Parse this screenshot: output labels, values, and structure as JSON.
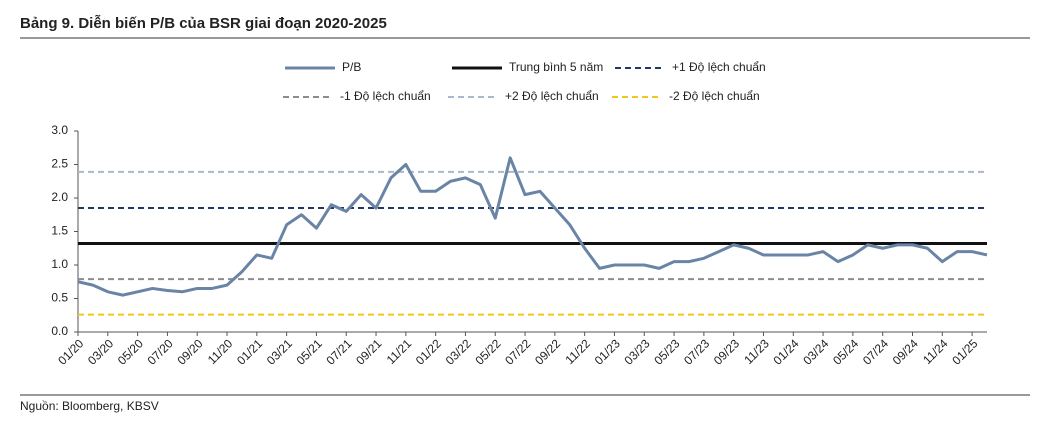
{
  "chart_data": {
    "type": "line",
    "title": "Bảng 9. Diễn biến P/B của BSR giai đoạn 2020-2025",
    "source": "Nguồn: Bloomberg, KBSV",
    "categories": [
      "01/20",
      null,
      "03/20",
      null,
      "05/20",
      null,
      "07/20",
      null,
      "09/20",
      null,
      "11/20",
      null,
      "01/21",
      null,
      "03/21",
      null,
      "05/21",
      null,
      "07/21",
      null,
      "09/21",
      null,
      "11/21",
      null,
      "01/22",
      null,
      "03/22",
      null,
      "05/22",
      null,
      "07/22",
      null,
      "09/22",
      null,
      "11/22",
      null,
      "01/23",
      null,
      "03/23",
      null,
      "05/23",
      null,
      "07/23",
      null,
      "09/23",
      null,
      "11/23",
      null,
      "01/24",
      null,
      "03/24",
      null,
      "05/24",
      null,
      "07/24",
      null,
      "09/24",
      null,
      "11/24",
      null,
      "01/25",
      null
    ],
    "series": [
      {
        "name": "P/B",
        "color": "#6a84a6",
        "values": [
          0.75,
          0.7,
          0.6,
          0.55,
          0.6,
          0.65,
          0.62,
          0.6,
          0.65,
          0.65,
          0.7,
          0.9,
          1.15,
          1.1,
          1.6,
          1.75,
          1.55,
          1.9,
          1.8,
          2.05,
          1.85,
          2.3,
          2.5,
          2.1,
          2.1,
          2.25,
          2.3,
          2.2,
          1.7,
          2.6,
          2.05,
          2.1,
          1.85,
          1.6,
          1.25,
          0.95,
          1.0,
          1.0,
          1.0,
          0.95,
          1.05,
          1.05,
          1.1,
          1.2,
          1.3,
          1.25,
          1.15,
          1.15,
          1.15,
          1.15,
          1.2,
          1.05,
          1.15,
          1.3,
          1.25,
          1.3,
          1.3,
          1.25,
          1.05,
          1.2,
          1.2,
          1.15
        ]
      }
    ],
    "reference_lines": [
      {
        "name": "Trung bình 5 năm",
        "value": 1.32,
        "color": "#111111",
        "dashed": false
      },
      {
        "name": "+1 Độ lệch chuẩn",
        "value": 1.85,
        "color": "#1f3864",
        "dashed": true
      },
      {
        "name": "-1 Độ lệch chuẩn",
        "value": 0.79,
        "color": "#8c8c8c",
        "dashed": true
      },
      {
        "name": "+2 Độ lệch chuẩn",
        "value": 2.39,
        "color": "#a9b8cc",
        "dashed": true
      },
      {
        "name": "-2 Độ lệch chuẩn",
        "value": 0.26,
        "color": "#f5c518",
        "dashed": true
      }
    ],
    "ylim": [
      0,
      3
    ],
    "yticks": [
      {
        "value": 0,
        "label": "0.0"
      },
      {
        "value": 0.5,
        "label": "0.5"
      },
      {
        "value": 1,
        "label": "1.0"
      },
      {
        "value": 1.5,
        "label": "1.5"
      },
      {
        "value": 2,
        "label": "2.0"
      },
      {
        "value": 2.5,
        "label": "2.5"
      },
      {
        "value": 3,
        "label": "3.0"
      }
    ]
  }
}
